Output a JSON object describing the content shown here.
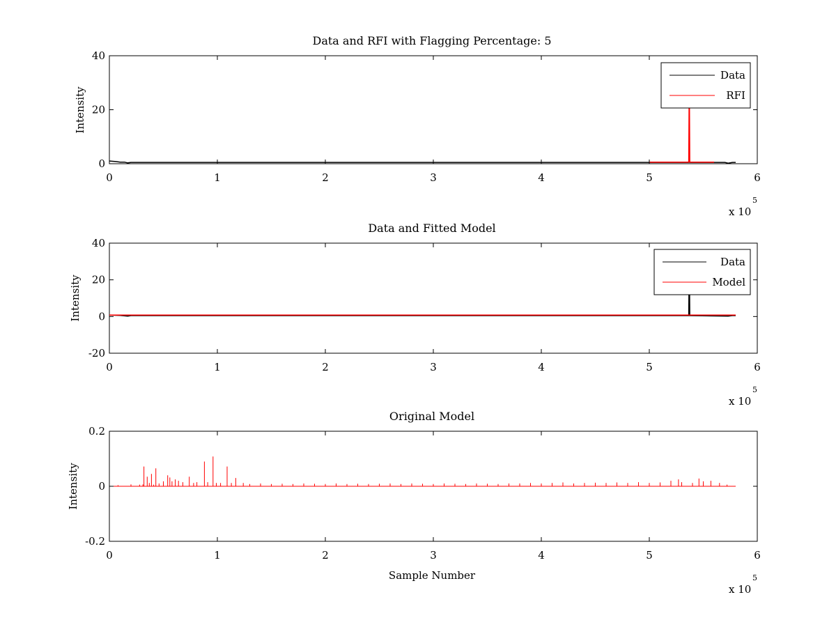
{
  "chart_data": [
    {
      "type": "line",
      "title": "Data and RFI with Flagging Percentage: 5",
      "xlabel": "",
      "ylabel": "Intensity",
      "xlim": [
        0,
        600000
      ],
      "ylim": [
        0,
        40
      ],
      "x_ticks": [
        0,
        1,
        2,
        3,
        4,
        5,
        6
      ],
      "y_ticks": [
        0,
        20,
        40
      ],
      "x_multiplier": {
        "base": "x 10",
        "exponent": "5"
      },
      "grid": false,
      "legend_position": "top-right",
      "series": [
        {
          "name": "Data",
          "color": "#000000",
          "points": [
            [
              0,
              1.0
            ],
            [
              3000,
              0.9
            ],
            [
              6000,
              0.8
            ],
            [
              10000,
              0.6
            ],
            [
              14000,
              0.6
            ],
            [
              17000,
              0.3
            ],
            [
              20000,
              0.5
            ],
            [
              60000,
              0.5
            ],
            [
              150000,
              0.5
            ],
            [
              250000,
              0.5
            ],
            [
              350000,
              0.5
            ],
            [
              450000,
              0.5
            ],
            [
              500000,
              0.5
            ],
            [
              537000,
              0.5
            ],
            [
              570000,
              0.5
            ],
            [
              573000,
              0.2
            ],
            [
              577000,
              0.5
            ],
            [
              580000,
              0.5
            ]
          ]
        },
        {
          "name": "RFI",
          "color": "#ff0000",
          "points": [
            [
              500000,
              0.6
            ],
            [
              536500,
              0.6
            ],
            [
              537000,
              33.0
            ],
            [
              537500,
              0.6
            ],
            [
              560000,
              0.6
            ]
          ]
        }
      ]
    },
    {
      "type": "line",
      "title": "Data and Fitted Model",
      "xlabel": "",
      "ylabel": "Intensity",
      "xlim": [
        0,
        600000
      ],
      "ylim": [
        -20,
        40
      ],
      "x_ticks": [
        0,
        1,
        2,
        3,
        4,
        5,
        6
      ],
      "y_ticks": [
        -20,
        0,
        20,
        40
      ],
      "x_multiplier": {
        "base": "x 10",
        "exponent": "5"
      },
      "grid": false,
      "legend_position": "top-right",
      "series": [
        {
          "name": "Data",
          "color": "#000000",
          "points": [
            [
              0,
              0.8
            ],
            [
              10000,
              0.6
            ],
            [
              17000,
              0.2
            ],
            [
              20000,
              0.5
            ],
            [
              536500,
              0.5
            ],
            [
              537000,
              33.0
            ],
            [
              537500,
              0.5
            ],
            [
              573000,
              0.2
            ],
            [
              577000,
              0.5
            ],
            [
              580000,
              0.5
            ]
          ]
        },
        {
          "name": "Model",
          "color": "#ff0000",
          "points": [
            [
              0,
              0.8
            ],
            [
              580000,
              0.8
            ]
          ]
        }
      ]
    },
    {
      "type": "line",
      "title": "Original Model",
      "xlabel": "Sample Number",
      "ylabel": "Intensity",
      "xlim": [
        0,
        600000
      ],
      "ylim": [
        -0.2,
        0.2
      ],
      "x_ticks": [
        0,
        1,
        2,
        3,
        4,
        5,
        6
      ],
      "y_ticks": [
        -0.2,
        0,
        0.2
      ],
      "x_multiplier": {
        "base": "x 10",
        "exponent": "5"
      },
      "grid": false,
      "series": [
        {
          "name": "",
          "color": "#ff0000",
          "baseline": 0,
          "x_end": 580000,
          "spikes": [
            [
              8000,
              0.004
            ],
            [
              20000,
              0.007
            ],
            [
              28000,
              0.006
            ],
            [
              31000,
              0.007
            ],
            [
              32000,
              0.072
            ],
            [
              35000,
              0.035
            ],
            [
              37000,
              0.012
            ],
            [
              39000,
              0.045
            ],
            [
              41000,
              0.006
            ],
            [
              43000,
              0.065
            ],
            [
              46000,
              0.01
            ],
            [
              50000,
              0.018
            ],
            [
              54000,
              0.04
            ],
            [
              56000,
              0.032
            ],
            [
              58000,
              0.018
            ],
            [
              61000,
              0.025
            ],
            [
              64000,
              0.02
            ],
            [
              68000,
              0.015
            ],
            [
              74000,
              0.035
            ],
            [
              78000,
              0.012
            ],
            [
              81000,
              0.015
            ],
            [
              88000,
              0.09
            ],
            [
              91000,
              0.015
            ],
            [
              96000,
              0.108
            ],
            [
              99000,
              0.012
            ],
            [
              103000,
              0.012
            ],
            [
              109000,
              0.072
            ],
            [
              113000,
              0.012
            ],
            [
              117000,
              0.03
            ],
            [
              124000,
              0.012
            ],
            [
              130000,
              0.008
            ],
            [
              140000,
              0.01
            ],
            [
              150000,
              0.008
            ],
            [
              160000,
              0.009
            ],
            [
              170000,
              0.008
            ],
            [
              180000,
              0.01
            ],
            [
              190000,
              0.009
            ],
            [
              200000,
              0.008
            ],
            [
              210000,
              0.01
            ],
            [
              220000,
              0.008
            ],
            [
              230000,
              0.009
            ],
            [
              240000,
              0.008
            ],
            [
              250000,
              0.009
            ],
            [
              260000,
              0.01
            ],
            [
              270000,
              0.008
            ],
            [
              280000,
              0.01
            ],
            [
              290000,
              0.009
            ],
            [
              300000,
              0.008
            ],
            [
              310000,
              0.01
            ],
            [
              320000,
              0.009
            ],
            [
              330000,
              0.008
            ],
            [
              340000,
              0.01
            ],
            [
              350000,
              0.009
            ],
            [
              360000,
              0.008
            ],
            [
              370000,
              0.01
            ],
            [
              380000,
              0.01
            ],
            [
              390000,
              0.012
            ],
            [
              400000,
              0.01
            ],
            [
              410000,
              0.012
            ],
            [
              420000,
              0.014
            ],
            [
              430000,
              0.01
            ],
            [
              440000,
              0.012
            ],
            [
              450000,
              0.013
            ],
            [
              460000,
              0.012
            ],
            [
              470000,
              0.014
            ],
            [
              480000,
              0.012
            ],
            [
              490000,
              0.015
            ],
            [
              500000,
              0.012
            ],
            [
              510000,
              0.014
            ],
            [
              520000,
              0.02
            ],
            [
              527000,
              0.025
            ],
            [
              530000,
              0.015
            ],
            [
              540000,
              0.012
            ],
            [
              546000,
              0.028
            ],
            [
              550000,
              0.018
            ],
            [
              557000,
              0.02
            ],
            [
              565000,
              0.012
            ],
            [
              572000,
              0.006
            ]
          ]
        }
      ]
    }
  ]
}
